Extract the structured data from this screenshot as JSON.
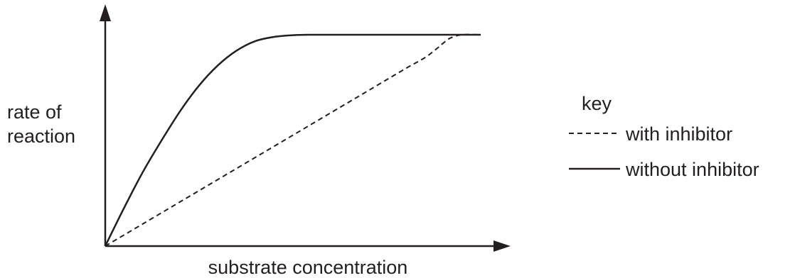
{
  "chart_data": {
    "type": "line",
    "title": "",
    "xlabel": "substrate concentration",
    "ylabel_lines": [
      "rate of",
      "reaction"
    ],
    "xlim": [
      0,
      1
    ],
    "ylim": [
      0,
      1
    ],
    "grid": false,
    "legend": {
      "placement": "right",
      "title": "key",
      "entries": [
        {
          "series": 0,
          "label": "with inhibitor",
          "style": "dashed"
        },
        {
          "series": 1,
          "label": "without inhibitor",
          "style": "solid"
        }
      ]
    },
    "series": [
      {
        "name": "with inhibitor",
        "style": "dashed",
        "color": "#231f20",
        "x": [
          0,
          0.1,
          0.2,
          0.3,
          0.4,
          0.5,
          0.6,
          0.7,
          0.8,
          0.85,
          0.88,
          0.9,
          0.92,
          0.95,
          1.0
        ],
        "y": [
          0,
          0.105,
          0.21,
          0.315,
          0.42,
          0.525,
          0.63,
          0.735,
          0.84,
          0.89,
          0.93,
          0.96,
          0.985,
          1.0,
          1.0
        ]
      },
      {
        "name": "without inhibitor",
        "style": "solid",
        "color": "#231f20",
        "x": [
          0,
          0.05,
          0.1,
          0.15,
          0.2,
          0.25,
          0.3,
          0.35,
          0.4,
          0.45,
          0.5,
          0.55,
          0.6,
          0.7,
          0.8,
          0.9,
          1.0
        ],
        "y": [
          0,
          0.18,
          0.35,
          0.5,
          0.64,
          0.76,
          0.855,
          0.925,
          0.97,
          0.99,
          0.998,
          1.0,
          1.0,
          1.0,
          1.0,
          1.0,
          1.0
        ]
      }
    ]
  }
}
